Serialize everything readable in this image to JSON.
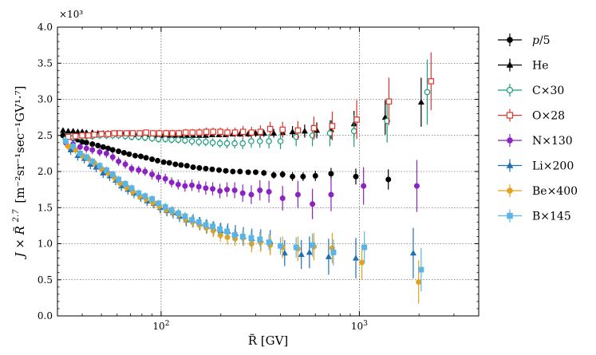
{
  "chart_data": {
    "type": "scatter",
    "title": "",
    "xlabel": "R̃ [GV]",
    "ylabel_main": "J × R̃",
    "ylabel_exp": "2.7",
    "ylabel_units": "[m⁻²sr⁻¹sec⁻¹GV¹·⁷]",
    "y_multiplier": "×10³",
    "x_scale": "log",
    "xlim": [
      30,
      4000
    ],
    "ylim": [
      0.0,
      4.0
    ],
    "x_ticks": [
      {
        "value": 100,
        "base": "10",
        "exp": "2"
      },
      {
        "value": 1000,
        "base": "10",
        "exp": "3"
      }
    ],
    "y_ticks": [
      {
        "value": 0.0,
        "label": "0.0"
      },
      {
        "value": 0.5,
        "label": "0.5"
      },
      {
        "value": 1.0,
        "label": "1.0"
      },
      {
        "value": 1.5,
        "label": "1.5"
      },
      {
        "value": 2.0,
        "label": "2.0"
      },
      {
        "value": 2.5,
        "label": "2.5"
      },
      {
        "value": 3.0,
        "label": "3.0"
      },
      {
        "value": 3.5,
        "label": "3.5"
      },
      {
        "value": 4.0,
        "label": "4.0"
      }
    ],
    "grid": true,
    "legend_position": "right",
    "series": [
      {
        "name": "p/5",
        "label_var": "p",
        "label_rest": "/5",
        "color": "#000000",
        "marker": "circle",
        "x": [
          32,
          34,
          36,
          38,
          40,
          42,
          45,
          48,
          51,
          54,
          57,
          61,
          65,
          69,
          74,
          79,
          84,
          90,
          96,
          103,
          110,
          118,
          126,
          135,
          145,
          156,
          168,
          181,
          196,
          212,
          230,
          250,
          275,
          300,
          330,
          370,
          410,
          460,
          520,
          600,
          720,
          960,
          1400
        ],
        "y": [
          2.5,
          2.48,
          2.46,
          2.44,
          2.41,
          2.4,
          2.38,
          2.36,
          2.34,
          2.32,
          2.3,
          2.28,
          2.26,
          2.24,
          2.22,
          2.21,
          2.19,
          2.17,
          2.15,
          2.13,
          2.12,
          2.1,
          2.09,
          2.08,
          2.06,
          2.05,
          2.04,
          2.03,
          2.02,
          2.01,
          2.0,
          2.0,
          1.99,
          1.99,
          1.98,
          1.95,
          1.96,
          1.93,
          1.93,
          1.94,
          1.97,
          1.93,
          1.89
        ],
        "err": [
          0.02,
          0.02,
          0.02,
          0.02,
          0.02,
          0.02,
          0.02,
          0.02,
          0.02,
          0.02,
          0.02,
          0.02,
          0.02,
          0.02,
          0.02,
          0.02,
          0.02,
          0.02,
          0.02,
          0.02,
          0.02,
          0.02,
          0.02,
          0.02,
          0.02,
          0.02,
          0.02,
          0.02,
          0.02,
          0.02,
          0.03,
          0.03,
          0.03,
          0.03,
          0.04,
          0.05,
          0.05,
          0.06,
          0.06,
          0.07,
          0.08,
          0.11,
          0.14
        ]
      },
      {
        "name": "He",
        "label_var": "",
        "label_rest": "He",
        "color": "#000000",
        "marker": "triangle",
        "x": [
          32,
          34,
          36,
          38,
          40,
          42,
          45,
          48,
          51,
          54,
          57,
          61,
          65,
          69,
          74,
          79,
          84,
          90,
          96,
          103,
          110,
          118,
          126,
          135,
          145,
          156,
          168,
          181,
          196,
          212,
          230,
          250,
          275,
          300,
          330,
          370,
          410,
          460,
          530,
          610,
          720,
          940,
          1350,
          2050
        ],
        "y": [
          2.57,
          2.56,
          2.56,
          2.55,
          2.55,
          2.54,
          2.54,
          2.53,
          2.53,
          2.53,
          2.52,
          2.52,
          2.52,
          2.52,
          2.51,
          2.51,
          2.51,
          2.5,
          2.5,
          2.5,
          2.5,
          2.5,
          2.5,
          2.5,
          2.5,
          2.5,
          2.5,
          2.51,
          2.51,
          2.51,
          2.52,
          2.52,
          2.52,
          2.53,
          2.53,
          2.53,
          2.54,
          2.55,
          2.56,
          2.57,
          2.58,
          2.66,
          2.75,
          2.96
        ],
        "err": [
          0.02,
          0.02,
          0.02,
          0.02,
          0.02,
          0.02,
          0.02,
          0.02,
          0.02,
          0.02,
          0.02,
          0.02,
          0.02,
          0.02,
          0.02,
          0.02,
          0.02,
          0.02,
          0.02,
          0.02,
          0.02,
          0.02,
          0.02,
          0.02,
          0.02,
          0.02,
          0.02,
          0.03,
          0.03,
          0.03,
          0.03,
          0.04,
          0.04,
          0.05,
          0.05,
          0.06,
          0.07,
          0.08,
          0.09,
          0.11,
          0.13,
          0.18,
          0.24,
          0.34
        ]
      },
      {
        "name": "C×30",
        "label_var": "",
        "label_rest": "C×30",
        "color": "#1a9c7b",
        "marker": "circle-open",
        "x": [
          33,
          36,
          39,
          42,
          45,
          49,
          53,
          57,
          61,
          66,
          71,
          77,
          83,
          90,
          97,
          105,
          113,
          122,
          132,
          143,
          155,
          168,
          182,
          198,
          215,
          235,
          258,
          285,
          315,
          350,
          400,
          480,
          580,
          710,
          940,
          1380,
          2200
        ],
        "y": [
          2.45,
          2.47,
          2.48,
          2.49,
          2.49,
          2.5,
          2.5,
          2.5,
          2.5,
          2.49,
          2.48,
          2.48,
          2.47,
          2.46,
          2.45,
          2.45,
          2.44,
          2.44,
          2.43,
          2.42,
          2.41,
          2.41,
          2.4,
          2.39,
          2.39,
          2.39,
          2.39,
          2.42,
          2.42,
          2.42,
          2.42,
          2.48,
          2.5,
          2.53,
          2.56,
          2.7,
          3.1
        ],
        "err": [
          0.05,
          0.05,
          0.05,
          0.05,
          0.05,
          0.05,
          0.05,
          0.05,
          0.05,
          0.05,
          0.05,
          0.05,
          0.05,
          0.05,
          0.05,
          0.05,
          0.05,
          0.05,
          0.05,
          0.06,
          0.06,
          0.06,
          0.06,
          0.06,
          0.07,
          0.07,
          0.08,
          0.09,
          0.09,
          0.1,
          0.11,
          0.13,
          0.15,
          0.18,
          0.22,
          0.3,
          0.45
        ]
      },
      {
        "name": "O×28",
        "label_var": "",
        "label_rest": "O×28",
        "color": "#e0342a",
        "marker": "square-open",
        "x": [
          34,
          37,
          40,
          43,
          46,
          50,
          54,
          58,
          62,
          67,
          72,
          78,
          84,
          91,
          98,
          106,
          114,
          123,
          133,
          144,
          156,
          169,
          183,
          199,
          216,
          236,
          259,
          286,
          317,
          355,
          410,
          490,
          590,
          730,
          970,
          1410,
          2300
        ],
        "y": [
          2.48,
          2.49,
          2.5,
          2.5,
          2.51,
          2.52,
          2.52,
          2.53,
          2.53,
          2.53,
          2.53,
          2.53,
          2.54,
          2.53,
          2.53,
          2.53,
          2.53,
          2.53,
          2.54,
          2.54,
          2.54,
          2.55,
          2.55,
          2.55,
          2.54,
          2.54,
          2.55,
          2.54,
          2.55,
          2.59,
          2.58,
          2.57,
          2.6,
          2.63,
          2.72,
          2.97,
          3.25
        ],
        "err": [
          0.04,
          0.04,
          0.04,
          0.04,
          0.04,
          0.04,
          0.04,
          0.04,
          0.04,
          0.04,
          0.04,
          0.04,
          0.04,
          0.04,
          0.05,
          0.05,
          0.05,
          0.05,
          0.05,
          0.05,
          0.06,
          0.06,
          0.06,
          0.06,
          0.07,
          0.07,
          0.08,
          0.08,
          0.09,
          0.1,
          0.11,
          0.13,
          0.16,
          0.2,
          0.27,
          0.33,
          0.4
        ]
      },
      {
        "name": "N×130",
        "label_var": "",
        "label_rest": "N×130",
        "color": "#8b22c4",
        "marker": "circle",
        "x": [
          33,
          36,
          39,
          42,
          45,
          49,
          53,
          57,
          61,
          66,
          71,
          77,
          83,
          90,
          97,
          105,
          113,
          122,
          132,
          143,
          155,
          168,
          182,
          198,
          215,
          235,
          258,
          285,
          315,
          350,
          410,
          490,
          580,
          720,
          1050,
          1950
        ],
        "y": [
          2.4,
          2.38,
          2.34,
          2.32,
          2.3,
          2.27,
          2.25,
          2.2,
          2.14,
          2.1,
          2.04,
          2.02,
          2.0,
          1.96,
          1.92,
          1.9,
          1.85,
          1.82,
          1.8,
          1.81,
          1.79,
          1.77,
          1.76,
          1.73,
          1.75,
          1.74,
          1.7,
          1.68,
          1.74,
          1.72,
          1.63,
          1.68,
          1.55,
          1.68,
          1.8,
          1.8
        ],
        "err": [
          0.06,
          0.06,
          0.06,
          0.06,
          0.06,
          0.06,
          0.06,
          0.06,
          0.06,
          0.06,
          0.06,
          0.06,
          0.06,
          0.07,
          0.07,
          0.07,
          0.07,
          0.07,
          0.08,
          0.08,
          0.08,
          0.09,
          0.09,
          0.1,
          0.1,
          0.11,
          0.12,
          0.13,
          0.14,
          0.15,
          0.17,
          0.19,
          0.21,
          0.23,
          0.26,
          0.36
        ]
      },
      {
        "name": "Li×200",
        "label_var": "",
        "label_rest": "Li×200",
        "color": "#1f6fb5",
        "marker": "triangle",
        "x": [
          35,
          38,
          41,
          44,
          47,
          51,
          55,
          59,
          63,
          68,
          73,
          79,
          85,
          92,
          99,
          107,
          115,
          124,
          134,
          145,
          157,
          170,
          184,
          200,
          217,
          237,
          260,
          287,
          318,
          355,
          420,
          510,
          560,
          700,
          960,
          1870
        ],
        "y": [
          2.3,
          2.22,
          2.18,
          2.1,
          2.06,
          1.98,
          1.94,
          1.88,
          1.8,
          1.75,
          1.7,
          1.65,
          1.59,
          1.56,
          1.5,
          1.46,
          1.43,
          1.38,
          1.33,
          1.32,
          1.28,
          1.24,
          1.21,
          1.18,
          1.17,
          1.14,
          1.1,
          1.07,
          1.05,
          1.03,
          0.87,
          0.85,
          0.88,
          0.82,
          0.8,
          0.87
        ],
        "err": [
          0.07,
          0.07,
          0.07,
          0.07,
          0.07,
          0.07,
          0.07,
          0.07,
          0.07,
          0.07,
          0.07,
          0.07,
          0.07,
          0.07,
          0.08,
          0.08,
          0.08,
          0.08,
          0.09,
          0.09,
          0.09,
          0.1,
          0.1,
          0.11,
          0.11,
          0.12,
          0.13,
          0.14,
          0.15,
          0.16,
          0.18,
          0.2,
          0.22,
          0.25,
          0.28,
          0.35
        ]
      },
      {
        "name": "Be×400",
        "label_var": "",
        "label_rest": "Be×400",
        "color": "#e3a21a",
        "marker": "circle",
        "x": [
          34,
          37,
          40,
          43,
          46,
          50,
          54,
          58,
          62,
          67,
          72,
          78,
          84,
          91,
          98,
          106,
          114,
          123,
          133,
          144,
          156,
          169,
          183,
          199,
          216,
          236,
          259,
          286,
          317,
          355,
          410,
          490,
          590,
          730,
          1030,
          1990
        ],
        "y": [
          2.35,
          2.3,
          2.22,
          2.18,
          2.12,
          2.04,
          1.98,
          1.92,
          1.84,
          1.78,
          1.72,
          1.66,
          1.62,
          1.57,
          1.52,
          1.47,
          1.44,
          1.4,
          1.34,
          1.3,
          1.26,
          1.22,
          1.18,
          1.12,
          1.09,
          1.07,
          1.08,
          1.0,
          1.02,
          0.98,
          0.95,
          0.93,
          0.96,
          0.94,
          0.74,
          0.47
        ],
        "err": [
          0.06,
          0.06,
          0.06,
          0.06,
          0.06,
          0.06,
          0.06,
          0.06,
          0.06,
          0.06,
          0.06,
          0.06,
          0.06,
          0.07,
          0.07,
          0.07,
          0.07,
          0.07,
          0.08,
          0.08,
          0.08,
          0.08,
          0.09,
          0.09,
          0.1,
          0.1,
          0.11,
          0.12,
          0.13,
          0.14,
          0.15,
          0.17,
          0.19,
          0.21,
          0.24,
          0.3
        ]
      },
      {
        "name": "B×145",
        "label_var": "",
        "label_rest": "B×145",
        "color": "#5ab4e5",
        "marker": "square",
        "x": [
          33,
          36,
          39,
          42,
          45,
          49,
          53,
          57,
          61,
          66,
          71,
          77,
          83,
          90,
          97,
          105,
          113,
          122,
          132,
          143,
          155,
          168,
          182,
          198,
          215,
          235,
          258,
          285,
          315,
          350,
          400,
          480,
          580,
          740,
          1060,
          2050
        ],
        "y": [
          2.42,
          2.35,
          2.25,
          2.2,
          2.14,
          2.08,
          2.02,
          1.96,
          1.89,
          1.83,
          1.77,
          1.7,
          1.66,
          1.62,
          1.56,
          1.51,
          1.46,
          1.42,
          1.38,
          1.33,
          1.3,
          1.26,
          1.24,
          1.2,
          1.17,
          1.12,
          1.1,
          1.08,
          1.06,
          1.02,
          0.97,
          0.95,
          0.98,
          0.88,
          0.95,
          0.64
        ],
        "err": [
          0.05,
          0.05,
          0.05,
          0.05,
          0.05,
          0.05,
          0.05,
          0.05,
          0.05,
          0.05,
          0.05,
          0.05,
          0.05,
          0.05,
          0.05,
          0.06,
          0.06,
          0.06,
          0.06,
          0.06,
          0.07,
          0.07,
          0.07,
          0.08,
          0.08,
          0.08,
          0.09,
          0.1,
          0.1,
          0.11,
          0.12,
          0.14,
          0.16,
          0.18,
          0.22,
          0.3
        ]
      }
    ]
  }
}
